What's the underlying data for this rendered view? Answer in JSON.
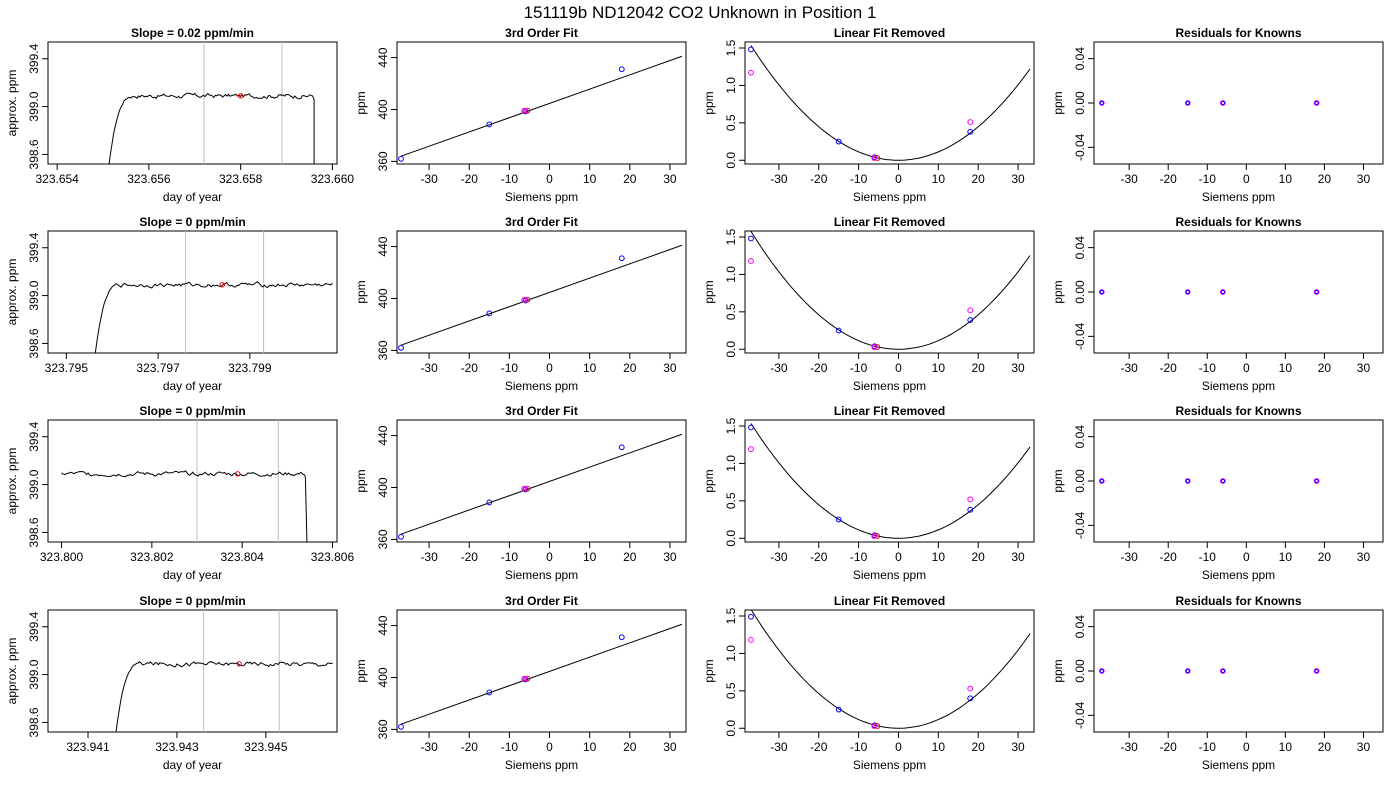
{
  "figure_title": "151119b     ND12042    CO2 Unknown in Position  1",
  "colors": {
    "axis": "#000000",
    "vline": "#bebebe",
    "known": "#0000ff",
    "unknown": "#ff0000",
    "residual_open": "#ff00ff"
  },
  "chart_data": [
    {
      "type": "line",
      "row": 1,
      "title": "Slope =  0.02  ppm/min",
      "xlabel": "day of year",
      "ylabel": "approx. ppm",
      "xlim": [
        323.6538,
        323.6601
      ],
      "ylim": [
        398.52,
        399.54
      ],
      "xticks": [
        323.654,
        323.656,
        323.658,
        323.66
      ],
      "xtick_labels": [
        "323.654",
        "323.656",
        "323.658",
        "323.660"
      ],
      "yticks": [
        398.6,
        399.0,
        399.4
      ],
      "ytick_labels": [
        "398.6",
        "399.0",
        "399.4"
      ],
      "vlines": [
        323.6572,
        323.6589
      ],
      "trace": {
        "x_start": 323.6551,
        "x_end": 323.6596,
        "plateau": 399.09,
        "rise_end": 323.6557,
        "drop_start": 323.6596
      },
      "marker": {
        "x": 323.658,
        "y": 399.09
      }
    },
    {
      "type": "scatter-fit",
      "row": 1,
      "title": "3rd Order Fit",
      "xlabel": "Siemens ppm",
      "ylabel": "ppm",
      "xlim": [
        -38,
        34
      ],
      "ylim": [
        358,
        452
      ],
      "xticks": [
        -30,
        -20,
        -10,
        0,
        10,
        20,
        30
      ],
      "xtick_labels": [
        "-30",
        "-20",
        "-10",
        "0",
        "10",
        "20",
        "30"
      ],
      "yticks": [
        360,
        400,
        440
      ],
      "ytick_labels": [
        "360",
        "400",
        "440"
      ],
      "known_points": [
        {
          "x": -37,
          "y": 362
        },
        {
          "x": -15,
          "y": 388.5
        },
        {
          "x": -6,
          "y": 398.5
        },
        {
          "x": 18,
          "y": 431
        }
      ],
      "unknown_point": {
        "x": -5.5,
        "y": 399.1
      },
      "fit_line": {
        "slope": 1.1,
        "intercept": 404.7,
        "x_from": -37,
        "x_to": 33
      }
    },
    {
      "type": "scatter-fit",
      "row": 1,
      "title": "Linear Fit Removed",
      "xlabel": "Siemens ppm",
      "ylabel": "ppm",
      "xlim": [
        -38.5,
        34
      ],
      "ylim": [
        -0.05,
        1.58
      ],
      "xticks": [
        -30,
        -20,
        -10,
        0,
        10,
        20,
        30
      ],
      "xtick_labels": [
        "-30",
        "-20",
        "-10",
        "0",
        "10",
        "20",
        "30"
      ],
      "yticks": [
        0.0,
        0.5,
        1.0,
        1.5
      ],
      "ytick_labels": [
        "0.0",
        "0.5",
        "1.0",
        "1.5"
      ],
      "known_points": [
        {
          "x": -37,
          "y": 1.48
        },
        {
          "x": -15,
          "y": 0.25
        },
        {
          "x": -6,
          "y": 0.04
        },
        {
          "x": 18,
          "y": 0.38
        }
      ],
      "open_points": [
        {
          "x": -37,
          "y": 1.17
        },
        {
          "x": 18,
          "y": 0.51
        }
      ],
      "unknown_point": {
        "x": -5.3,
        "y": 0.03
      },
      "curve": {
        "a": 0.00112,
        "x_from": -37,
        "x_to": 33
      }
    },
    {
      "type": "scatter",
      "row": 1,
      "title": "Residuals for Knowns",
      "xlabel": "Siemens ppm",
      "ylabel": "ppm",
      "xlim": [
        -39,
        35
      ],
      "ylim": [
        -0.055,
        0.055
      ],
      "xticks": [
        -30,
        -20,
        -10,
        0,
        10,
        20,
        30
      ],
      "xtick_labels": [
        "-30",
        "-20",
        "-10",
        "0",
        "10",
        "20",
        "30"
      ],
      "yticks": [
        -0.04,
        0.0,
        0.04
      ],
      "ytick_labels": [
        "-0.04",
        "0.00",
        "0.04"
      ],
      "points": [
        {
          "x": -37,
          "y": 0
        },
        {
          "x": -15,
          "y": 0
        },
        {
          "x": -6,
          "y": 0
        },
        {
          "x": 18,
          "y": 0
        }
      ]
    },
    {
      "type": "line",
      "row": 2,
      "title": "Slope =  0  ppm/min",
      "xlabel": "day of year",
      "ylabel": "approx. ppm",
      "xlim": [
        323.7946,
        323.8009
      ],
      "ylim": [
        398.52,
        399.54
      ],
      "xticks": [
        323.795,
        323.797,
        323.799
      ],
      "xtick_labels": [
        "323.795",
        "323.797",
        "323.799"
      ],
      "vlines": [
        323.7976,
        323.7993
      ],
      "yticks": [
        398.6,
        399.0,
        399.4
      ],
      "ytick_labels": [
        "398.6",
        "399.0",
        "399.4"
      ],
      "trace": {
        "x_start": 323.7956,
        "x_end": 323.8008,
        "plateau": 399.09,
        "rise_end": 323.7962
      },
      "marker": {
        "x": 323.7984,
        "y": 399.09
      }
    },
    {
      "type": "scatter-fit",
      "row": 2,
      "title": "3rd Order Fit",
      "xlabel": "Siemens ppm",
      "ylabel": "ppm",
      "xlim": [
        -38,
        34
      ],
      "ylim": [
        358,
        452
      ],
      "xticks": [
        -30,
        -20,
        -10,
        0,
        10,
        20,
        30
      ],
      "xtick_labels": [
        "-30",
        "-20",
        "-10",
        "0",
        "10",
        "20",
        "30"
      ],
      "yticks": [
        360,
        400,
        440
      ],
      "ytick_labels": [
        "360",
        "400",
        "440"
      ],
      "known_points": [
        {
          "x": -37,
          "y": 362
        },
        {
          "x": -15,
          "y": 388.5
        },
        {
          "x": -6,
          "y": 398.5
        },
        {
          "x": 18,
          "y": 431
        }
      ],
      "unknown_point": {
        "x": -5.5,
        "y": 399.1
      },
      "fit_line": {
        "slope": 1.1,
        "intercept": 404.7,
        "x_from": -37,
        "x_to": 33
      }
    },
    {
      "type": "scatter-fit",
      "row": 2,
      "title": "Linear Fit Removed",
      "xlabel": "Siemens ppm",
      "ylabel": "ppm",
      "xlim": [
        -38.5,
        34
      ],
      "ylim": [
        -0.05,
        1.58
      ],
      "xticks": [
        -30,
        -20,
        -10,
        0,
        10,
        20,
        30
      ],
      "xtick_labels": [
        "-30",
        "-20",
        "-10",
        "0",
        "10",
        "20",
        "30"
      ],
      "yticks": [
        0.0,
        0.5,
        1.0,
        1.5
      ],
      "ytick_labels": [
        "0.0",
        "0.5",
        "1.0",
        "1.5"
      ],
      "known_points": [
        {
          "x": -37,
          "y": 1.48
        },
        {
          "x": -15,
          "y": 0.25
        },
        {
          "x": -6,
          "y": 0.04
        },
        {
          "x": 18,
          "y": 0.39
        }
      ],
      "open_points": [
        {
          "x": -37,
          "y": 1.18
        },
        {
          "x": 18,
          "y": 0.52
        }
      ],
      "unknown_point": {
        "x": -5.3,
        "y": 0.03
      },
      "curve": {
        "a": 0.00115,
        "x_from": -37,
        "x_to": 33
      }
    },
    {
      "type": "scatter",
      "row": 2,
      "title": "Residuals for Knowns",
      "xlabel": "Siemens ppm",
      "ylabel": "ppm",
      "xlim": [
        -39,
        35
      ],
      "ylim": [
        -0.055,
        0.055
      ],
      "xticks": [
        -30,
        -20,
        -10,
        0,
        10,
        20,
        30
      ],
      "xtick_labels": [
        "-30",
        "-20",
        "-10",
        "0",
        "10",
        "20",
        "30"
      ],
      "yticks": [
        -0.04,
        0.0,
        0.04
      ],
      "ytick_labels": [
        "-0.04",
        "0.00",
        "0.04"
      ],
      "points": [
        {
          "x": -37,
          "y": 0
        },
        {
          "x": -15,
          "y": 0
        },
        {
          "x": -6,
          "y": 0
        },
        {
          "x": 18,
          "y": 0
        }
      ]
    },
    {
      "type": "line",
      "row": 3,
      "title": "Slope =  0  ppm/min",
      "xlabel": "day of year",
      "ylabel": "approx. ppm",
      "xlim": [
        323.7997,
        323.8061
      ],
      "ylim": [
        398.52,
        399.54
      ],
      "xticks": [
        323.8,
        323.802,
        323.804,
        323.806
      ],
      "xtick_labels": [
        "323.800",
        "323.802",
        "323.804",
        "323.806"
      ],
      "vlines": [
        323.803,
        323.8048
      ],
      "yticks": [
        398.6,
        399.0,
        399.4
      ],
      "ytick_labels": [
        "398.6",
        "399.0",
        "399.4"
      ],
      "trace": {
        "x_start": 323.8,
        "x_end": 323.8055,
        "plateau": 399.09,
        "drop_start": 323.8054
      },
      "marker": {
        "x": 323.8039,
        "y": 399.09
      }
    },
    {
      "type": "scatter-fit",
      "row": 3,
      "title": "3rd Order Fit",
      "xlabel": "Siemens ppm",
      "ylabel": "ppm",
      "xlim": [
        -38,
        34
      ],
      "ylim": [
        358,
        452
      ],
      "xticks": [
        -30,
        -20,
        -10,
        0,
        10,
        20,
        30
      ],
      "xtick_labels": [
        "-30",
        "-20",
        "-10",
        "0",
        "10",
        "20",
        "30"
      ],
      "yticks": [
        360,
        400,
        440
      ],
      "ytick_labels": [
        "360",
        "400",
        "440"
      ],
      "known_points": [
        {
          "x": -37,
          "y": 362
        },
        {
          "x": -15,
          "y": 388.5
        },
        {
          "x": -6,
          "y": 398.5
        },
        {
          "x": 18,
          "y": 431
        }
      ],
      "unknown_point": {
        "x": -5.5,
        "y": 399.1
      },
      "fit_line": {
        "slope": 1.1,
        "intercept": 404.7,
        "x_from": -37,
        "x_to": 33
      }
    },
    {
      "type": "scatter-fit",
      "row": 3,
      "title": "Linear Fit Removed",
      "xlabel": "Siemens ppm",
      "ylabel": "ppm",
      "xlim": [
        -38.5,
        34
      ],
      "ylim": [
        -0.05,
        1.58
      ],
      "xticks": [
        -30,
        -20,
        -10,
        0,
        10,
        20,
        30
      ],
      "xtick_labels": [
        "-30",
        "-20",
        "-10",
        "0",
        "10",
        "20",
        "30"
      ],
      "yticks": [
        0.0,
        0.5,
        1.0,
        1.5
      ],
      "ytick_labels": [
        "0.0",
        "0.5",
        "1.0",
        "1.5"
      ],
      "known_points": [
        {
          "x": -37,
          "y": 1.48
        },
        {
          "x": -15,
          "y": 0.25
        },
        {
          "x": -6,
          "y": 0.04
        },
        {
          "x": 18,
          "y": 0.38
        }
      ],
      "open_points": [
        {
          "x": -37,
          "y": 1.19
        },
        {
          "x": 18,
          "y": 0.52
        }
      ],
      "unknown_point": {
        "x": -5.3,
        "y": 0.03
      },
      "curve": {
        "a": 0.00112,
        "x_from": -37,
        "x_to": 33
      }
    },
    {
      "type": "scatter",
      "row": 3,
      "title": "Residuals for Knowns",
      "xlabel": "Siemens ppm",
      "ylabel": "ppm",
      "xlim": [
        -39,
        35
      ],
      "ylim": [
        -0.055,
        0.055
      ],
      "xticks": [
        -30,
        -20,
        -10,
        0,
        10,
        20,
        30
      ],
      "xtick_labels": [
        "-30",
        "-20",
        "-10",
        "0",
        "10",
        "20",
        "30"
      ],
      "yticks": [
        -0.04,
        0.0,
        0.04
      ],
      "ytick_labels": [
        "-0.04",
        "0.00",
        "0.04"
      ],
      "points": [
        {
          "x": -37,
          "y": 0
        },
        {
          "x": -15,
          "y": 0
        },
        {
          "x": -6,
          "y": 0
        },
        {
          "x": 18,
          "y": 0
        }
      ]
    },
    {
      "type": "line",
      "row": 4,
      "title": "Slope =  0  ppm/min",
      "xlabel": "day of year",
      "ylabel": "approx. ppm",
      "xlim": [
        323.9401,
        323.9466
      ],
      "ylim": [
        398.52,
        399.54
      ],
      "xticks": [
        323.941,
        323.943,
        323.945
      ],
      "xtick_labels": [
        "323.941",
        "323.943",
        "323.945"
      ],
      "vlines": [
        323.9436,
        323.9453
      ],
      "yticks": [
        398.6,
        399.0,
        399.4
      ],
      "ytick_labels": [
        "398.6",
        "399.0",
        "399.4"
      ],
      "trace": {
        "x_start": 323.9416,
        "x_end": 323.9465,
        "plateau": 399.09,
        "rise_end": 323.9422
      },
      "marker": {
        "x": 323.9444,
        "y": 399.09
      }
    },
    {
      "type": "scatter-fit",
      "row": 4,
      "title": "3rd Order Fit",
      "xlabel": "Siemens ppm",
      "ylabel": "ppm",
      "xlim": [
        -38,
        34
      ],
      "ylim": [
        358,
        452
      ],
      "xticks": [
        -30,
        -20,
        -10,
        0,
        10,
        20,
        30
      ],
      "xtick_labels": [
        "-30",
        "-20",
        "-10",
        "0",
        "10",
        "20",
        "30"
      ],
      "yticks": [
        360,
        400,
        440
      ],
      "ytick_labels": [
        "360",
        "400",
        "440"
      ],
      "known_points": [
        {
          "x": -37,
          "y": 362
        },
        {
          "x": -15,
          "y": 388.5
        },
        {
          "x": -6,
          "y": 398.5
        },
        {
          "x": 18,
          "y": 431
        }
      ],
      "unknown_point": {
        "x": -5.5,
        "y": 399.1
      },
      "fit_line": {
        "slope": 1.1,
        "intercept": 404.7,
        "x_from": -37,
        "x_to": 33
      }
    },
    {
      "type": "scatter-fit",
      "row": 4,
      "title": "Linear Fit Removed",
      "xlabel": "Siemens ppm",
      "ylabel": "ppm",
      "xlim": [
        -38.5,
        34
      ],
      "ylim": [
        -0.05,
        1.58
      ],
      "xticks": [
        -30,
        -20,
        -10,
        0,
        10,
        20,
        30
      ],
      "xtick_labels": [
        "-30",
        "-20",
        "-10",
        "0",
        "10",
        "20",
        "30"
      ],
      "yticks": [
        0.0,
        0.5,
        1.0,
        1.5
      ],
      "ytick_labels": [
        "0.0",
        "0.5",
        "1.0",
        "1.5"
      ],
      "known_points": [
        {
          "x": -37,
          "y": 1.49
        },
        {
          "x": -15,
          "y": 0.25
        },
        {
          "x": -6,
          "y": 0.04
        },
        {
          "x": 18,
          "y": 0.4
        }
      ],
      "open_points": [
        {
          "x": -37,
          "y": 1.18
        },
        {
          "x": 18,
          "y": 0.53
        }
      ],
      "unknown_point": {
        "x": -5.3,
        "y": 0.03
      },
      "curve": {
        "a": 0.00116,
        "x_from": -37,
        "x_to": 33
      }
    },
    {
      "type": "scatter",
      "row": 4,
      "title": "Residuals for Knowns",
      "xlabel": "Siemens ppm",
      "ylabel": "ppm",
      "xlim": [
        -39,
        35
      ],
      "ylim": [
        -0.055,
        0.055
      ],
      "xticks": [
        -30,
        -20,
        -10,
        0,
        10,
        20,
        30
      ],
      "xtick_labels": [
        "-30",
        "-20",
        "-10",
        "0",
        "10",
        "20",
        "30"
      ],
      "yticks": [
        -0.04,
        0.0,
        0.04
      ],
      "ytick_labels": [
        "-0.04",
        "0.00",
        "0.04"
      ],
      "points": [
        {
          "x": -37,
          "y": 0
        },
        {
          "x": -15,
          "y": 0
        },
        {
          "x": -6,
          "y": 0
        },
        {
          "x": 18,
          "y": 0
        }
      ]
    }
  ]
}
